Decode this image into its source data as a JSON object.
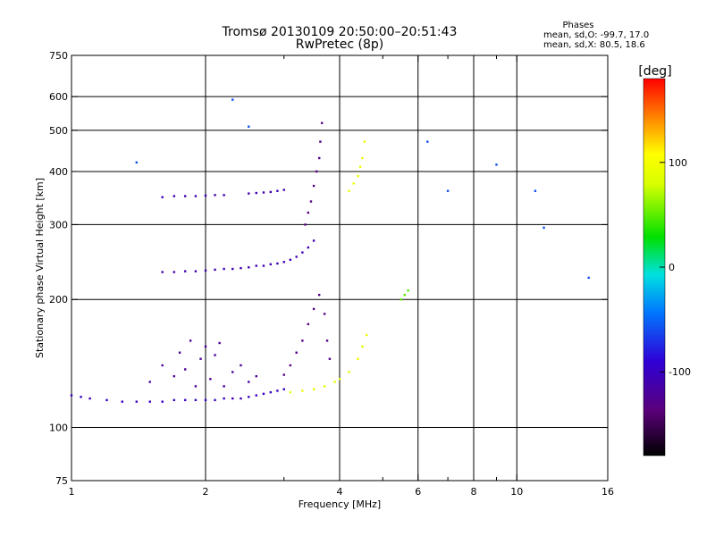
{
  "chart_data": {
    "type": "scatter",
    "title": "Tromsø 20130109 20:50:00–20:51:43",
    "subtitle": "RwPretec (8p)",
    "stats": {
      "header": "Phases",
      "line_o": "mean, sd,O: -99.7, 17.0",
      "line_x": "mean, sd,X:  80.5, 18.6"
    },
    "xlabel": "Frequency [MHz]",
    "ylabel": "Stationary phase Virtual Height [km]",
    "x_scale": "log",
    "y_scale": "log",
    "xlim": [
      1,
      16
    ],
    "ylim": [
      75,
      750
    ],
    "x_ticks": [
      1,
      2,
      4,
      6,
      8,
      10,
      16
    ],
    "x_minor_ticks": [
      3,
      5,
      7,
      9
    ],
    "y_ticks": [
      75,
      100,
      200,
      300,
      400,
      500,
      600,
      750
    ],
    "grid_x": [
      2,
      4,
      6,
      8,
      10
    ],
    "grid_y": [
      100,
      200,
      300,
      400,
      500,
      600
    ],
    "colorbar": {
      "label": "[deg]",
      "range": [
        -180,
        180
      ],
      "ticks": [
        100,
        0,
        -100
      ]
    },
    "grid": true,
    "point_groups": [
      {
        "name": "low O-trace",
        "phase": -100,
        "f": [
          1.0,
          1.05,
          1.1,
          1.2,
          1.3,
          1.4,
          1.5,
          1.6,
          1.7,
          1.8,
          1.9,
          2.0,
          2.1,
          2.2,
          2.3,
          2.4,
          2.5,
          2.6,
          2.7,
          2.8,
          2.9,
          3.0
        ],
        "h": [
          119,
          118,
          117,
          116,
          115,
          115,
          115,
          115,
          116,
          116,
          116,
          116,
          116,
          117,
          117,
          117,
          118,
          119,
          120,
          121,
          122,
          123
        ]
      },
      {
        "name": "low O-trace spread",
        "phase": -120,
        "f": [
          1.5,
          1.6,
          1.7,
          1.75,
          1.8,
          1.85,
          1.9,
          1.95,
          2.0,
          2.05,
          2.1,
          2.15,
          2.2,
          2.3,
          2.4,
          2.5,
          2.6
        ],
        "h": [
          128,
          140,
          132,
          150,
          137,
          160,
          125,
          145,
          155,
          130,
          148,
          158,
          125,
          135,
          140,
          128,
          132
        ]
      },
      {
        "name": "low O-trace rise",
        "phase": -130,
        "f": [
          3.0,
          3.1,
          3.2,
          3.3,
          3.4,
          3.5,
          3.6,
          3.7,
          3.75,
          3.8
        ],
        "h": [
          133,
          140,
          150,
          160,
          175,
          190,
          205,
          185,
          160,
          145
        ]
      },
      {
        "name": "low X-trace",
        "phase": 90,
        "f": [
          3.1,
          3.3,
          3.5,
          3.7,
          3.9,
          4.0,
          4.2,
          4.4,
          4.5,
          4.6
        ],
        "h": [
          121,
          122,
          123,
          125,
          128,
          130,
          135,
          145,
          155,
          165
        ]
      },
      {
        "name": "F2 O-trace",
        "phase": -110,
        "f": [
          1.6,
          1.7,
          1.8,
          1.9,
          2.0,
          2.1,
          2.2,
          2.3,
          2.4,
          2.5,
          2.6,
          2.7,
          2.8,
          2.9,
          3.0,
          3.1,
          3.2,
          3.3,
          3.4,
          3.5
        ],
        "h": [
          232,
          232,
          233,
          233,
          234,
          235,
          236,
          236,
          237,
          238,
          240,
          240,
          242,
          243,
          245,
          248,
          252,
          258,
          265,
          275
        ]
      },
      {
        "name": "F2 O-trace upper",
        "phase": -110,
        "f": [
          1.6,
          1.7,
          1.8,
          1.9,
          2.0,
          2.1,
          2.2,
          2.5,
          2.6,
          2.7,
          2.8,
          2.9,
          3.0
        ],
        "h": [
          348,
          350,
          350,
          350,
          351,
          352,
          352,
          355,
          356,
          357,
          358,
          360,
          362
        ]
      },
      {
        "name": "F2 cusp",
        "phase": -130,
        "f": [
          3.35,
          3.4,
          3.45,
          3.5,
          3.55,
          3.6,
          3.62,
          3.65
        ],
        "h": [
          300,
          320,
          340,
          370,
          400,
          430,
          470,
          520
        ]
      },
      {
        "name": "F2 X-trace",
        "phase": 95,
        "f": [
          4.2,
          4.3,
          4.4,
          4.45,
          4.5,
          4.55
        ],
        "h": [
          360,
          375,
          390,
          410,
          430,
          470
        ]
      },
      {
        "name": "mid X cluster",
        "phase": 50,
        "f": [
          5.5,
          5.6,
          5.7
        ],
        "h": [
          200,
          205,
          210
        ]
      },
      {
        "name": "sporadic",
        "phase": -60,
        "f": [
          1.4,
          2.3,
          2.5,
          6.3,
          7.0,
          9.0,
          11.0,
          11.5,
          14.5
        ],
        "h": [
          420,
          590,
          510,
          470,
          360,
          415,
          360,
          295,
          225
        ]
      }
    ]
  }
}
